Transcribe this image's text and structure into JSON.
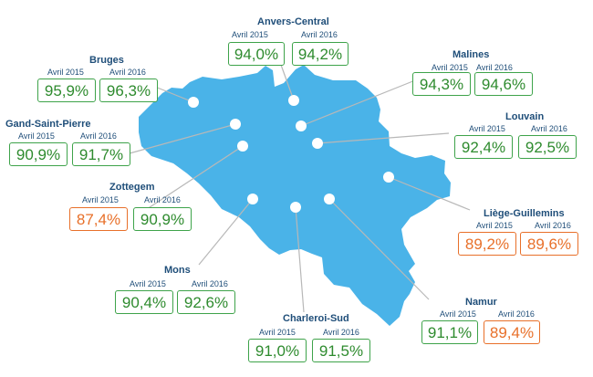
{
  "colors": {
    "map": "#4ab3e8",
    "label": "#1f4e79",
    "good": "#2e8b2e",
    "bad": "#e8702a"
  },
  "stations": [
    {
      "name": "Anvers-Central",
      "p1": "Avril 2015",
      "v1": "94,0%",
      "s1": "good",
      "p2": "Avril 2016",
      "v2": "94,2%",
      "s2": "good"
    },
    {
      "name": "Bruges",
      "p1": "Avril 2015",
      "v1": "95,9%",
      "s1": "good",
      "p2": "Avril 2016",
      "v2": "96,3%",
      "s2": "good"
    },
    {
      "name": "Malines",
      "p1": "Avril 2015",
      "v1": "94,3%",
      "s1": "good",
      "p2": "Avril 2016",
      "v2": "94,6%",
      "s2": "good"
    },
    {
      "name": "Gand-Saint-Pierre",
      "p1": "Avril 2015",
      "v1": "90,9%",
      "s1": "good",
      "p2": "Avril 2016",
      "v2": "91,7%",
      "s2": "good"
    },
    {
      "name": "Louvain",
      "p1": "Avril 2015",
      "v1": "92,4%",
      "s1": "good",
      "p2": "Avril 2016",
      "v2": "92,5%",
      "s2": "good"
    },
    {
      "name": "Zottegem",
      "p1": "Avril 2015",
      "v1": "87,4%",
      "s1": "bad",
      "p2": "Avril 2016",
      "v2": "90,9%",
      "s2": "good"
    },
    {
      "name": "Liège-Guillemins",
      "p1": "Avril 2015",
      "v1": "89,2%",
      "s1": "bad",
      "p2": "Avril 2016",
      "v2": "89,6%",
      "s2": "bad"
    },
    {
      "name": "Mons",
      "p1": "Avril 2015",
      "v1": "90,4%",
      "s1": "good",
      "p2": "Avril 2016",
      "v2": "92,6%",
      "s2": "good"
    },
    {
      "name": "Namur",
      "p1": "Avril 2015",
      "v1": "91,1%",
      "s1": "good",
      "p2": "Avril 2016",
      "v2": "89,4%",
      "s2": "bad"
    },
    {
      "name": "Charleroi-Sud",
      "p1": "Avril 2015",
      "v1": "91,0%",
      "s1": "good",
      "p2": "Avril 2016",
      "v2": "91,5%",
      "s2": "good"
    }
  ]
}
